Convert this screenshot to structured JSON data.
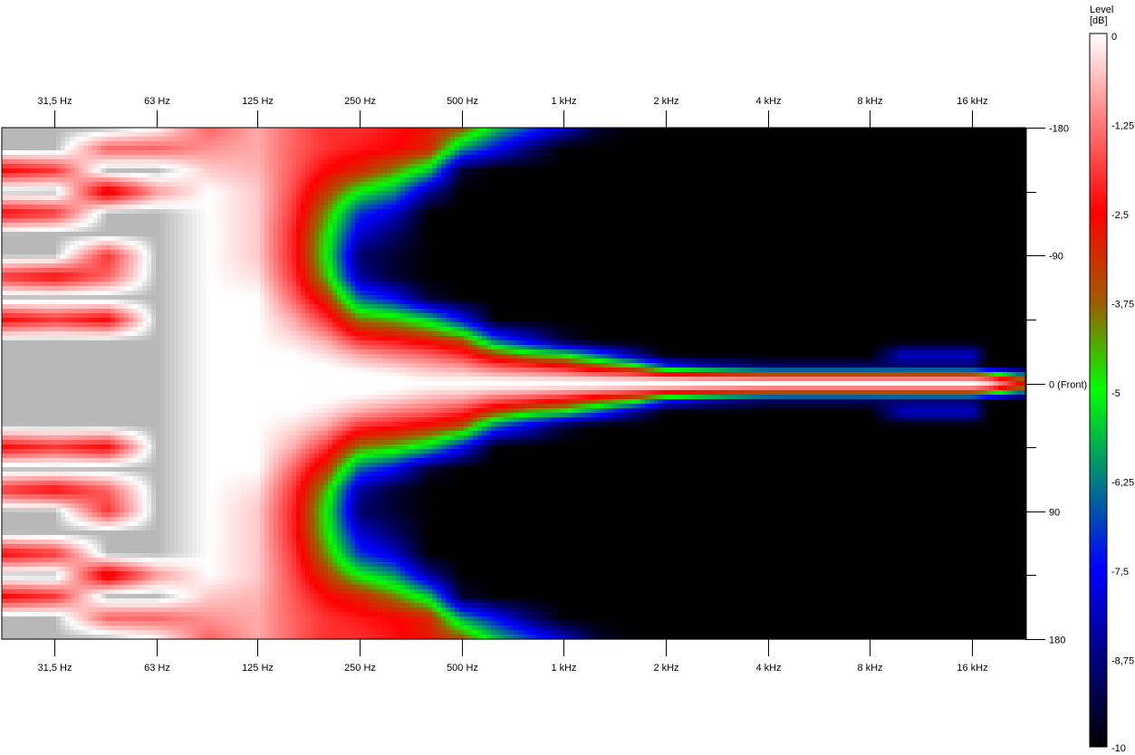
{
  "chart_data": {
    "type": "heatmap",
    "title": "",
    "xlabel": "",
    "ylabel": "",
    "x_scale": "log",
    "x_ticks": [
      {
        "value": 31.5,
        "label": "31,5 Hz"
      },
      {
        "value": 63,
        "label": "63 Hz"
      },
      {
        "value": 125,
        "label": "125 Hz"
      },
      {
        "value": 250,
        "label": "250 Hz"
      },
      {
        "value": 500,
        "label": "500 Hz"
      },
      {
        "value": 1000,
        "label": "1 kHz"
      },
      {
        "value": 2000,
        "label": "2 kHz"
      },
      {
        "value": 4000,
        "label": "4 kHz"
      },
      {
        "value": 8000,
        "label": "8 kHz"
      },
      {
        "value": 16000,
        "label": "16 kHz"
      }
    ],
    "xlim": [
      22,
      23000
    ],
    "y_ticks": [
      {
        "value": -180,
        "label": "-180"
      },
      {
        "value": -135,
        "label": ""
      },
      {
        "value": -90,
        "label": "-90"
      },
      {
        "value": -45,
        "label": ""
      },
      {
        "value": 0,
        "label": "0 (Front)"
      },
      {
        "value": 45,
        "label": ""
      },
      {
        "value": 90,
        "label": "90"
      },
      {
        "value": 135,
        "label": ""
      },
      {
        "value": 180,
        "label": "180"
      }
    ],
    "ylim": [
      -180,
      180
    ],
    "colorbar": {
      "label_line1": "Level",
      "label_line2": "[dB]",
      "range": [
        -10,
        0
      ],
      "ticks": [
        "0",
        "-1,25",
        "-2,5",
        "-3,75",
        "-5",
        "-6,25",
        "-7,5",
        "-8,75",
        "-10"
      ],
      "stops": [
        {
          "value": 0.5,
          "color": "#b8b8b8"
        },
        {
          "value": 0,
          "color": "#ffffff"
        },
        {
          "value": -1.25,
          "color": "#ff7a7a"
        },
        {
          "value": -2.5,
          "color": "#ff0000"
        },
        {
          "value": -3.75,
          "color": "#a05a00"
        },
        {
          "value": -5,
          "color": "#00ff00"
        },
        {
          "value": -6.25,
          "color": "#008080"
        },
        {
          "value": -7.5,
          "color": "#0000ff"
        },
        {
          "value": -8.75,
          "color": "#000080"
        },
        {
          "value": -10,
          "color": "#000000"
        }
      ]
    },
    "symmetric_about_front": true,
    "angles_deg": [
      0,
      4,
      8,
      12,
      20,
      30,
      45,
      60,
      75,
      90,
      105,
      120,
      135,
      150,
      165,
      180
    ],
    "frequencies_hz": [
      22,
      31.5,
      45,
      63,
      90,
      125,
      160,
      200,
      250,
      315,
      400,
      500,
      630,
      800,
      1000,
      1250,
      1600,
      2000,
      2500,
      4000,
      8000,
      10000,
      16000,
      18000,
      22000
    ],
    "levels_db": [
      [
        0.5,
        0.5,
        0.5,
        0.5,
        0.5,
        0.5,
        -2.5,
        0.5,
        -2,
        0.5,
        0.5,
        -2.5,
        0.5,
        -2.5,
        0.5,
        0.5
      ],
      [
        0.5,
        0.5,
        0.5,
        0.5,
        0.5,
        0.5,
        -2,
        0.5,
        -2.5,
        0.5,
        0.5,
        -2,
        0.5,
        -2,
        0.5,
        0.5
      ],
      [
        0.5,
        0.5,
        0.5,
        0.5,
        0.5,
        0.5,
        -2.5,
        0.5,
        -1.5,
        -2,
        0.5,
        0.5,
        -3,
        0.5,
        -1.5,
        0.5
      ],
      [
        0.5,
        0.5,
        0.5,
        0.5,
        0.5,
        0.5,
        0.5,
        0.5,
        0.5,
        0.5,
        0.5,
        0.5,
        -1,
        0.5,
        -1.5,
        0
      ],
      [
        0,
        0,
        0,
        0,
        0,
        0,
        0,
        0,
        0,
        0,
        0,
        0,
        0,
        -0.5,
        -1,
        -1.5
      ],
      [
        0,
        0,
        0,
        0,
        0,
        0,
        0,
        0,
        -0.3,
        -0.5,
        -0.5,
        -0.5,
        -0.5,
        -0.7,
        -0.8,
        -0.8
      ],
      [
        0,
        0,
        0,
        0,
        0,
        -0.3,
        -0.8,
        -1.5,
        -2,
        -2.2,
        -2.2,
        -2,
        -1.8,
        -1.6,
        -1.5,
        -1.5
      ],
      [
        0,
        0,
        0,
        0,
        -0.3,
        -0.8,
        -2,
        -3.2,
        -4.5,
        -5,
        -4.8,
        -4.2,
        -3.3,
        -2.5,
        -2,
        -2
      ],
      [
        0,
        0,
        0,
        -0.3,
        -0.8,
        -2,
        -4,
        -6.5,
        -8.5,
        -9,
        -8,
        -7,
        -5,
        -3,
        -2.3,
        -2
      ],
      [
        0,
        0,
        -0.2,
        -0.5,
        -1.2,
        -2.3,
        -4.5,
        -7.5,
        -9.5,
        -9.5,
        -9,
        -8,
        -6,
        -4,
        -2.5,
        -2.3
      ],
      [
        0,
        -0.2,
        -0.5,
        -0.8,
        -1.5,
        -2.8,
        -5.5,
        -9.5,
        -10,
        -10,
        -10,
        -10,
        -8.5,
        -5.5,
        -3,
        -2.8
      ],
      [
        0,
        -0.2,
        -0.6,
        -1,
        -2,
        -3.5,
        -7.5,
        -10,
        -10,
        -10,
        -10,
        -10,
        -10,
        -9.5,
        -6,
        -3.5
      ],
      [
        0,
        -0.3,
        -1,
        -1.6,
        -3.3,
        -6.5,
        -10,
        -10,
        -10,
        -10,
        -10,
        -10,
        -10,
        -10,
        -7.5,
        -5.5
      ],
      [
        0,
        -0.4,
        -1.2,
        -2,
        -4.5,
        -8,
        -10,
        -10,
        -10,
        -10,
        -10,
        -10,
        -10,
        -10,
        -9,
        -6.8
      ],
      [
        0,
        -0.5,
        -1.5,
        -2.5,
        -5,
        -9.5,
        -10,
        -10,
        -10,
        -10,
        -10,
        -10,
        -10,
        -10,
        -10,
        -8
      ],
      [
        0,
        -0.6,
        -2,
        -3.5,
        -6.5,
        -10,
        -10,
        -10,
        -10,
        -10,
        -10,
        -10,
        -10,
        -10,
        -10,
        -9.5
      ],
      [
        0,
        -0.8,
        -2.5,
        -4.5,
        -8.5,
        -10,
        -10,
        -10,
        -10,
        -10,
        -10,
        -10,
        -10,
        -10,
        -10,
        -10
      ],
      [
        0,
        -1,
        -3.5,
        -7,
        -10,
        -10,
        -10,
        -10,
        -10,
        -10,
        -10,
        -10,
        -10,
        -10,
        -10,
        -10
      ],
      [
        0,
        -1.2,
        -4,
        -8,
        -10,
        -10,
        -10,
        -10,
        -10,
        -10,
        -10,
        -10,
        -10,
        -10,
        -10,
        -10
      ],
      [
        0,
        -1.5,
        -5,
        -9,
        -10,
        -10,
        -10,
        -10,
        -10,
        -10,
        -10,
        -10,
        -10,
        -10,
        -10,
        -10
      ],
      [
        0,
        -1.5,
        -5,
        -9,
        -10,
        -10,
        -10,
        -10,
        -10,
        -10,
        -10,
        -10,
        -10,
        -10,
        -10,
        -10
      ],
      [
        0,
        -1.5,
        -5,
        -9,
        -8,
        -10,
        -10,
        -10,
        -10,
        -10,
        -10,
        -10,
        -10,
        -10,
        -10,
        -10
      ],
      [
        0,
        -1.5,
        -5,
        -9,
        -8,
        -10,
        -10,
        -10,
        -10,
        -10,
        -10,
        -10,
        -10,
        -10,
        -10,
        -10
      ],
      [
        -0.5,
        -2,
        -6,
        -10,
        -10,
        -10,
        -10,
        -10,
        -10,
        -10,
        -10,
        -10,
        -10,
        -10,
        -10,
        -10
      ],
      [
        -2.5,
        -4,
        -8,
        -10,
        -10,
        -10,
        -10,
        -10,
        -10,
        -10,
        -10,
        -10,
        -10,
        -10,
        -10,
        -10
      ]
    ]
  }
}
